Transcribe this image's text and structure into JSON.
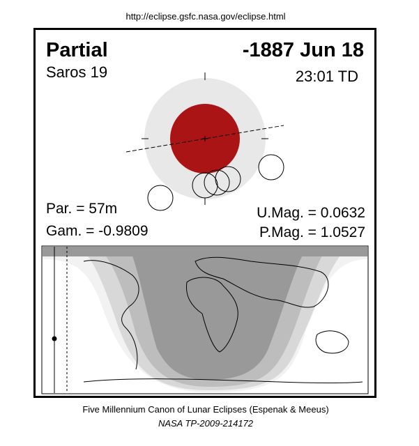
{
  "header": {
    "url": "http://eclipse.gsfc.nasa.gov/eclipse.html"
  },
  "eclipse": {
    "type": "Partial",
    "date": "-1887 Jun 18",
    "saros": "Saros  19",
    "time": "23:01 TD",
    "par": "Par. =  57m",
    "gam": "Gam. = -0.9809",
    "umag": "U.Mag. = 0.0632",
    "pmag": "P.Mag. = 1.0527"
  },
  "footer": {
    "line1": "Five Millennium Canon of Lunar Eclipses (Espenak & Meeus)",
    "line2": "NASA TP-2009-214172"
  }
}
